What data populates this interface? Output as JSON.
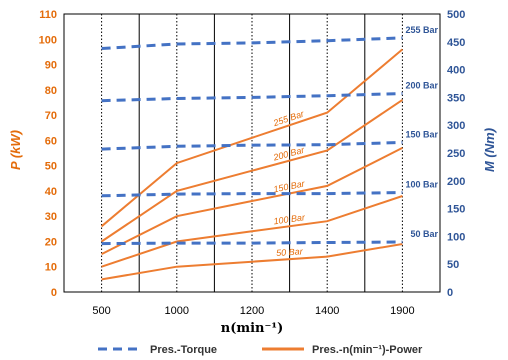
{
  "chart_data": {
    "type": "line",
    "xlabel": "n(min⁻¹)",
    "ylabel_left": "P (kW)",
    "ylabel_right": "M (Nm)",
    "x_ticks": [
      "500",
      "1000",
      "1200",
      "1400",
      "1900"
    ],
    "x_ticks_values": [
      500,
      1000,
      1200,
      1400,
      1900
    ],
    "ylim_left": [
      0,
      110
    ],
    "ylim_right": [
      0,
      500
    ],
    "y_ticks_left": [
      0,
      10,
      20,
      30,
      40,
      50,
      60,
      70,
      80,
      90,
      100,
      110
    ],
    "y_ticks_right": [
      0,
      50,
      100,
      150,
      200,
      250,
      300,
      350,
      400,
      450,
      500
    ],
    "torque_series": [
      {
        "name": "255 Bar",
        "x": [
          500,
          1000,
          1200,
          1400,
          1900
        ],
        "y": [
          438,
          446,
          448,
          452,
          457
        ]
      },
      {
        "name": "200 Bar",
        "x": [
          500,
          1000,
          1200,
          1400,
          1900
        ],
        "y": [
          344,
          348,
          350,
          353,
          357
        ]
      },
      {
        "name": "150 Bar",
        "x": [
          500,
          1000,
          1200,
          1400,
          1900
        ],
        "y": [
          257,
          262,
          264,
          265,
          269
        ]
      },
      {
        "name": "100 Bar",
        "x": [
          500,
          1000,
          1200,
          1400,
          1900
        ],
        "y": [
          173,
          176,
          177,
          177,
          179
        ]
      },
      {
        "name": "50 Bar",
        "x": [
          500,
          1000,
          1200,
          1400,
          1900
        ],
        "y": [
          87,
          88,
          88,
          89,
          90
        ]
      }
    ],
    "power_series": [
      {
        "name": "255 Bar",
        "x": [
          500,
          1000,
          1200,
          1400,
          1900
        ],
        "y": [
          26,
          51,
          61,
          71,
          96
        ]
      },
      {
        "name": "200 Bar",
        "x": [
          500,
          1000,
          1200,
          1400,
          1900
        ],
        "y": [
          20,
          40,
          48,
          56,
          76
        ]
      },
      {
        "name": "150 Bar",
        "x": [
          500,
          1000,
          1200,
          1400,
          1900
        ],
        "y": [
          15,
          30,
          36,
          42,
          57
        ]
      },
      {
        "name": "100 Bar",
        "x": [
          500,
          1000,
          1200,
          1400,
          1900
        ],
        "y": [
          10,
          20,
          24,
          28,
          38
        ]
      },
      {
        "name": "50 Bar",
        "x": [
          500,
          1000,
          1200,
          1400,
          1900
        ],
        "y": [
          5,
          10,
          12,
          14,
          19
        ]
      }
    ],
    "legend": {
      "placement": "bottom",
      "torque": "Pres.-Torque",
      "power": "Pres.-n(min⁻¹)-Power"
    },
    "colors": {
      "power": "#ed7d31",
      "torque": "#4472c4"
    },
    "grid": true
  }
}
